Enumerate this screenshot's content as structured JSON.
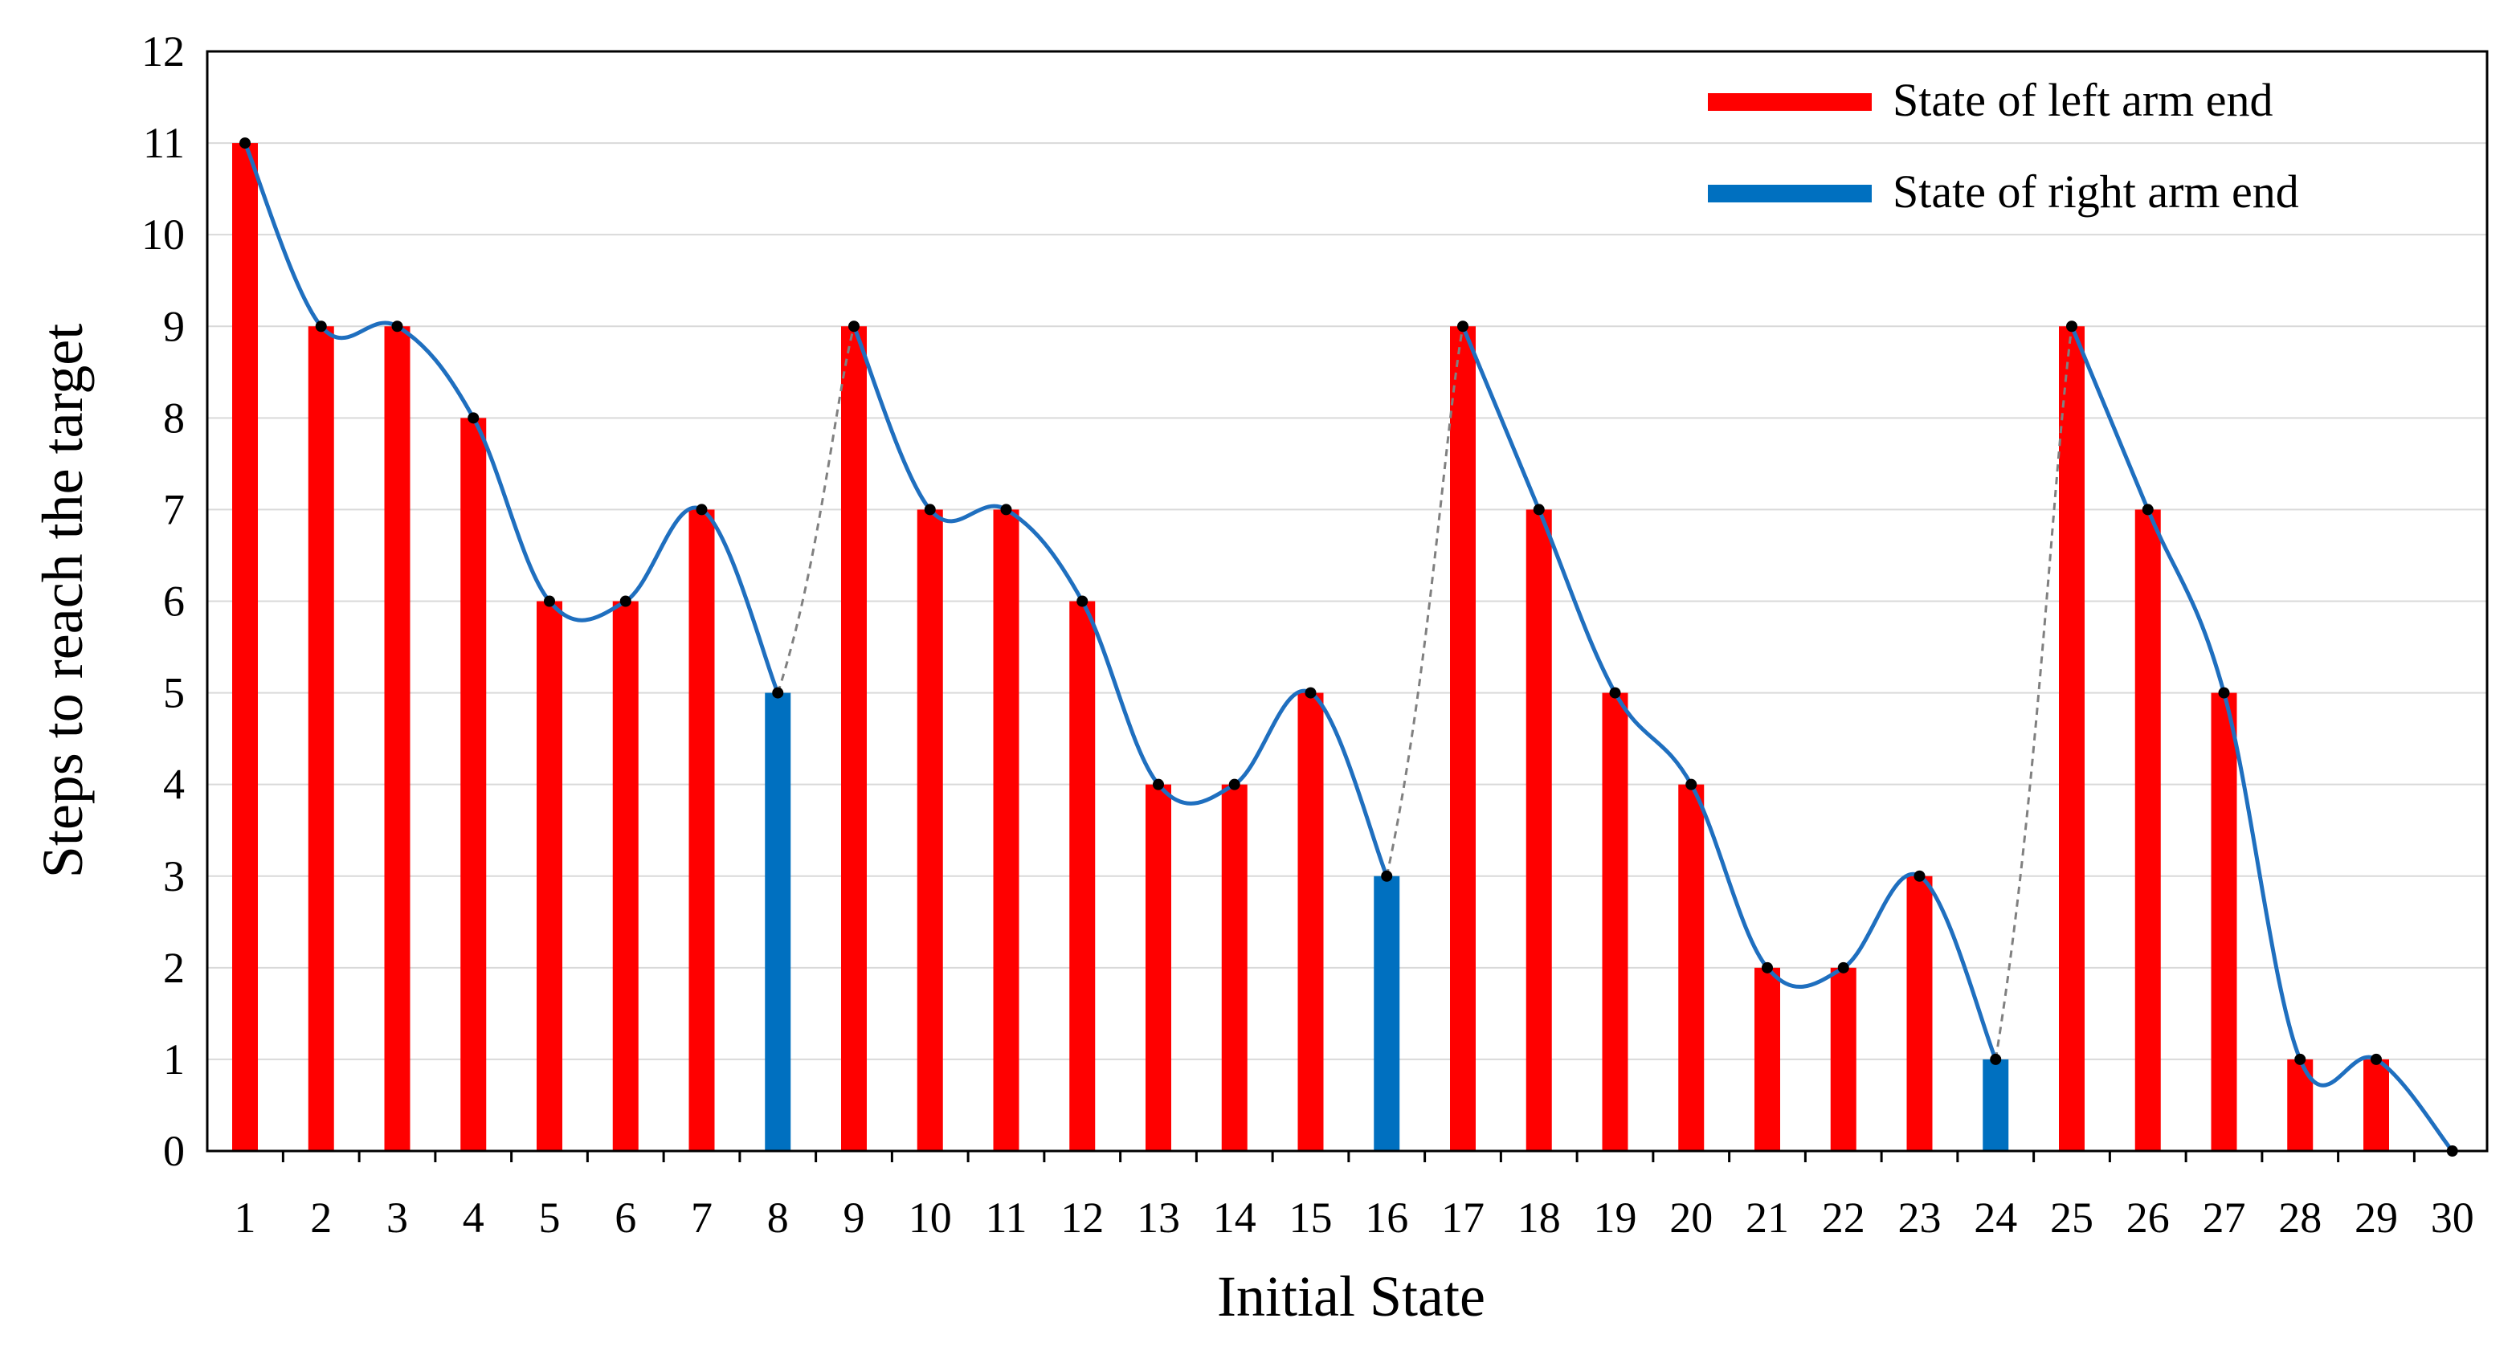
{
  "chart_data": {
    "type": "bar",
    "categories": [
      "1",
      "2",
      "3",
      "4",
      "5",
      "6",
      "7",
      "8",
      "9",
      "10",
      "11",
      "12",
      "13",
      "14",
      "15",
      "16",
      "17",
      "18",
      "19",
      "20",
      "21",
      "22",
      "23",
      "24",
      "25",
      "26",
      "27",
      "28",
      "29",
      "30"
    ],
    "values": [
      11,
      9,
      9,
      8,
      6,
      6,
      7,
      5,
      9,
      7,
      7,
      6,
      4,
      4,
      5,
      3,
      9,
      7,
      5,
      4,
      2,
      2,
      3,
      1,
      9,
      7,
      5,
      1,
      1,
      0
    ],
    "bar_state": [
      "left",
      "left",
      "left",
      "left",
      "left",
      "left",
      "left",
      "right",
      "left",
      "left",
      "left",
      "left",
      "left",
      "left",
      "left",
      "right",
      "left",
      "left",
      "left",
      "left",
      "left",
      "left",
      "left",
      "right",
      "left",
      "left",
      "left",
      "left",
      "left",
      "none"
    ],
    "series": [
      {
        "name": "State of left arm end",
        "color": "#ff0000"
      },
      {
        "name": "State of right arm end",
        "color": "#0070c0"
      }
    ],
    "curve_color": "#1f6fbf",
    "jump_line_color": "#808080",
    "jump_lines": [
      [
        8,
        9
      ],
      [
        16,
        17
      ],
      [
        24,
        25
      ]
    ],
    "xlabel": "Initial State",
    "ylabel": "Steps to reach the target",
    "ylim": [
      0,
      12
    ],
    "yticks": [
      "0",
      "1",
      "2",
      "3",
      "4",
      "5",
      "6",
      "7",
      "8",
      "9",
      "10",
      "11",
      "12"
    ],
    "grid": "horizontal",
    "legend_position": "top-right"
  }
}
